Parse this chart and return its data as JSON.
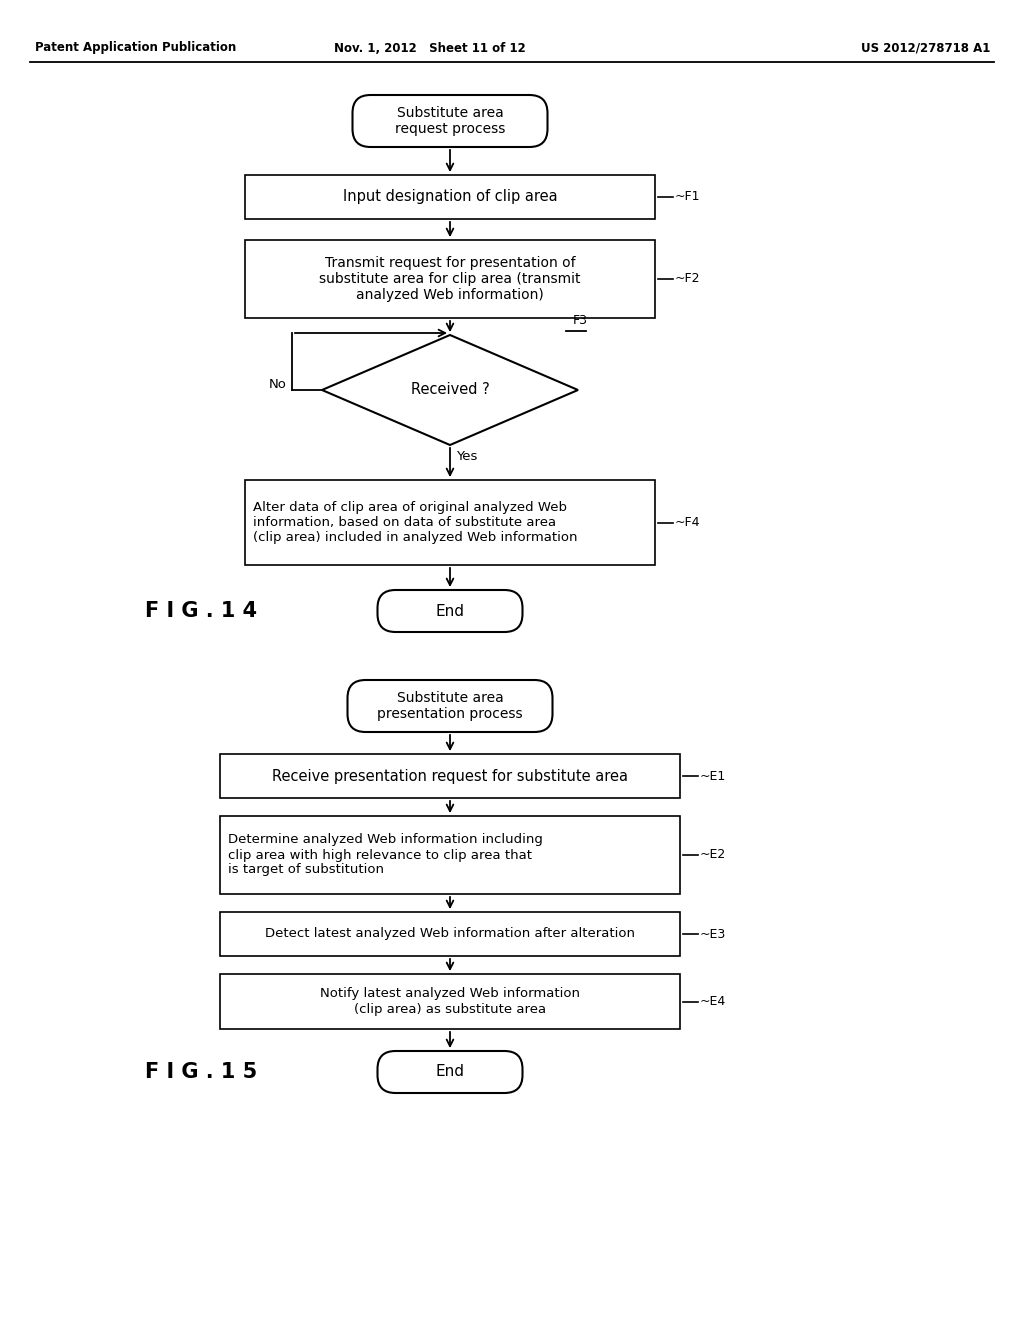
{
  "bg_color": "#ffffff",
  "header_left": "Patent Application Publication",
  "header_mid": "Nov. 1, 2012   Sheet 11 of 12",
  "header_right": "US 2012/278718 A1",
  "fig14_label": "F I G . 1 4",
  "fig15_label": "F I G . 1 5",
  "diagram1": {
    "title": "Substitute area\nrequest process",
    "steps": [
      {
        "id": "F1",
        "text": "Input designation of clip area",
        "type": "rect"
      },
      {
        "id": "F2",
        "text": "Transmit request for presentation of\nsubstitute area for clip area (transmit\nanalyzed Web information)",
        "type": "rect"
      },
      {
        "id": "F3",
        "text": "Received ?",
        "type": "diamond"
      },
      {
        "id": "F4",
        "text": "Alter data of clip area of original analyzed Web\ninformation, based on data of substitute area\n(clip area) included in analyzed Web information",
        "type": "rect"
      },
      {
        "id": "end1",
        "text": "End",
        "type": "rounded"
      }
    ]
  },
  "diagram2": {
    "title": "Substitute area\npresentation process",
    "steps": [
      {
        "id": "E1",
        "text": "Receive presentation request for substitute area",
        "type": "rect"
      },
      {
        "id": "E2",
        "text": "Determine analyzed Web information including\nclip area with high relevance to clip area that\nis target of substitution",
        "type": "rect"
      },
      {
        "id": "E3",
        "text": "Detect latest analyzed Web information after alteration",
        "type": "rect"
      },
      {
        "id": "E4",
        "text": "Notify latest analyzed Web information\n(clip area) as substitute area",
        "type": "rect"
      },
      {
        "id": "end2",
        "text": "End",
        "type": "rounded"
      }
    ]
  }
}
